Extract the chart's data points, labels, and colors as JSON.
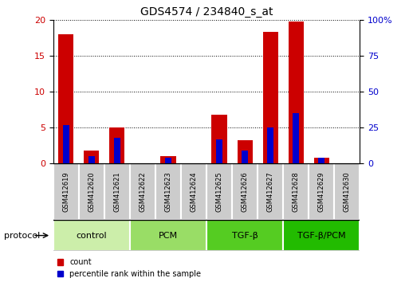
{
  "title": "GDS4574 / 234840_s_at",
  "samples": [
    "GSM412619",
    "GSM412620",
    "GSM412621",
    "GSM412622",
    "GSM412623",
    "GSM412624",
    "GSM412625",
    "GSM412626",
    "GSM412627",
    "GSM412628",
    "GSM412629",
    "GSM412630"
  ],
  "count_values": [
    18,
    1.8,
    5,
    0,
    1,
    0,
    6.8,
    3.2,
    18.3,
    19.8,
    0.8,
    0
  ],
  "percentile_values": [
    27,
    5,
    18,
    0,
    4,
    0,
    17,
    9,
    25,
    35,
    4,
    0
  ],
  "left_ylim": [
    0,
    20
  ],
  "right_ylim": [
    0,
    100
  ],
  "left_yticks": [
    0,
    5,
    10,
    15,
    20
  ],
  "right_yticks": [
    0,
    25,
    50,
    75,
    100
  ],
  "right_yticklabels": [
    "0",
    "25",
    "50",
    "75",
    "100%"
  ],
  "groups": [
    {
      "label": "control",
      "indices": [
        0,
        1,
        2
      ],
      "color": "#cceeaa"
    },
    {
      "label": "PCM",
      "indices": [
        3,
        4,
        5
      ],
      "color": "#99dd66"
    },
    {
      "label": "TGF-β",
      "indices": [
        6,
        7,
        8
      ],
      "color": "#55cc22"
    },
    {
      "label": "TGF-β/PCM",
      "indices": [
        9,
        10,
        11
      ],
      "color": "#22bb00"
    }
  ],
  "bar_color_red": "#cc0000",
  "bar_color_blue": "#0000cc",
  "bar_width": 0.6,
  "blue_bar_width": 0.25,
  "grid_color": "black",
  "grid_style": "dotted",
  "bg_color": "white",
  "tick_label_color_left": "#cc0000",
  "tick_label_color_right": "#0000cc",
  "protocol_label": "protocol",
  "legend_count": "count",
  "legend_percentile": "percentile rank within the sample",
  "sample_box_color": "#cccccc",
  "sample_label_fontsize": 6,
  "group_label_fontsize": 8,
  "title_fontsize": 10
}
